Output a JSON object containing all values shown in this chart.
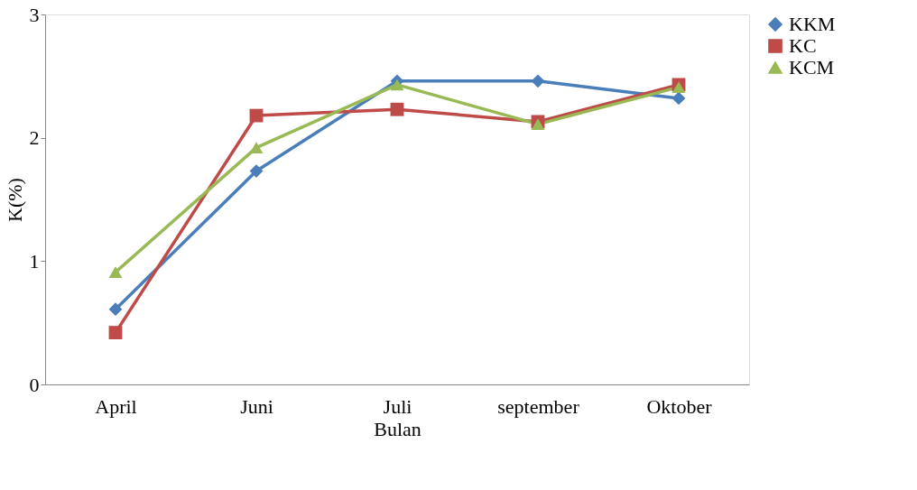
{
  "chart_data": {
    "type": "line",
    "xlabel": "Bulan",
    "ylabel": "K(%)",
    "categories": [
      "April",
      "Juni",
      "Juli",
      "september",
      "Oktober"
    ],
    "series": [
      {
        "name": "KKM",
        "color": "#4a7ebb",
        "marker": "diamond",
        "values": [
          0.61,
          1.73,
          2.46,
          2.46,
          2.32
        ]
      },
      {
        "name": "KC",
        "color": "#be4b48",
        "marker": "square",
        "values": [
          0.42,
          2.18,
          2.23,
          2.13,
          2.43
        ]
      },
      {
        "name": "KCM",
        "color": "#98b954",
        "marker": "triangle",
        "values": [
          0.91,
          1.92,
          2.43,
          2.11,
          2.41
        ]
      }
    ],
    "ylim": [
      0,
      3
    ],
    "yticks": [
      0,
      1,
      2,
      3
    ],
    "grid": false,
    "legend": "right",
    "line_style": "solid"
  }
}
